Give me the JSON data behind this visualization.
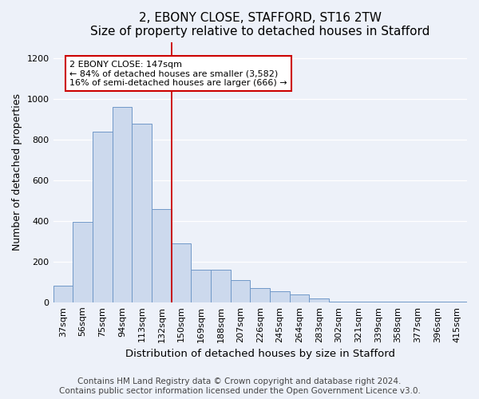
{
  "title": "2, EBONY CLOSE, STAFFORD, ST16 2TW",
  "subtitle": "Size of property relative to detached houses in Stafford",
  "xlabel": "Distribution of detached houses by size in Stafford",
  "ylabel": "Number of detached properties",
  "categories": [
    "37sqm",
    "56sqm",
    "75sqm",
    "94sqm",
    "113sqm",
    "132sqm",
    "150sqm",
    "169sqm",
    "188sqm",
    "207sqm",
    "226sqm",
    "245sqm",
    "264sqm",
    "283sqm",
    "302sqm",
    "321sqm",
    "339sqm",
    "358sqm",
    "377sqm",
    "396sqm",
    "415sqm"
  ],
  "values": [
    80,
    395,
    840,
    960,
    880,
    460,
    290,
    160,
    160,
    110,
    70,
    55,
    40,
    20,
    5,
    5,
    5,
    5,
    5,
    5,
    5
  ],
  "bar_color": "#ccd9ed",
  "bar_edge_color": "#7098c8",
  "vline_x_index": 6,
  "vline_color": "#cc0000",
  "annotation_text": "2 EBONY CLOSE: 147sqm\n← 84% of detached houses are smaller (3,582)\n16% of semi-detached houses are larger (666) →",
  "annotation_box_color": "#ffffff",
  "annotation_box_edge_color": "#cc0000",
  "ylim": [
    0,
    1280
  ],
  "yticks": [
    0,
    200,
    400,
    600,
    800,
    1000,
    1200
  ],
  "footer_line1": "Contains HM Land Registry data © Crown copyright and database right 2024.",
  "footer_line2": "Contains public sector information licensed under the Open Government Licence v3.0.",
  "bg_color": "#edf1f9",
  "title_fontsize": 11,
  "subtitle_fontsize": 10,
  "axis_label_fontsize": 9,
  "tick_fontsize": 8,
  "footer_fontsize": 7.5
}
